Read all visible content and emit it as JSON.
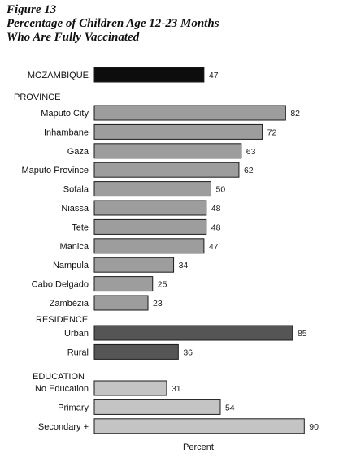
{
  "figure": {
    "label": "Figure 13",
    "title_line1": "Percentage of Children Age 12-23 Months",
    "title_line2": "Who Are Fully Vaccinated"
  },
  "chart_data": {
    "type": "bar",
    "orientation": "horizontal",
    "title": "Percentage of Children Age 12-23 Months Who Are Fully Vaccinated",
    "xlabel": "Percent",
    "xlim": [
      0,
      90
    ],
    "grid": false,
    "legend": "none",
    "groups": [
      {
        "heading": "",
        "color": "#0d0d0d",
        "items": [
          {
            "label": "MOZAMBIQUE",
            "value": 47
          }
        ]
      },
      {
        "heading": "PROVINCE",
        "color": "#9d9d9d",
        "items": [
          {
            "label": "Maputo City",
            "value": 82
          },
          {
            "label": "Inhambane",
            "value": 72
          },
          {
            "label": "Gaza",
            "value": 63
          },
          {
            "label": "Maputo Province",
            "value": 62
          },
          {
            "label": "Sofala",
            "value": 50
          },
          {
            "label": "Niassa",
            "value": 48
          },
          {
            "label": "Tete",
            "value": 48
          },
          {
            "label": "Manica",
            "value": 47
          },
          {
            "label": "Nampula",
            "value": 34
          },
          {
            "label": "Cabo Delgado",
            "value": 25
          },
          {
            "label": "Zambézia",
            "value": 23
          }
        ]
      },
      {
        "heading": "RESIDENCE",
        "color": "#555555",
        "items": [
          {
            "label": "Urban",
            "value": 85
          },
          {
            "label": "Rural",
            "value": 36
          }
        ]
      },
      {
        "heading": "EDUCATION",
        "color": "#c4c4c4",
        "items": [
          {
            "label": "No Education",
            "value": 31
          },
          {
            "label": "Primary",
            "value": 54
          },
          {
            "label": "Secondary +",
            "value": 90
          }
        ]
      }
    ]
  }
}
